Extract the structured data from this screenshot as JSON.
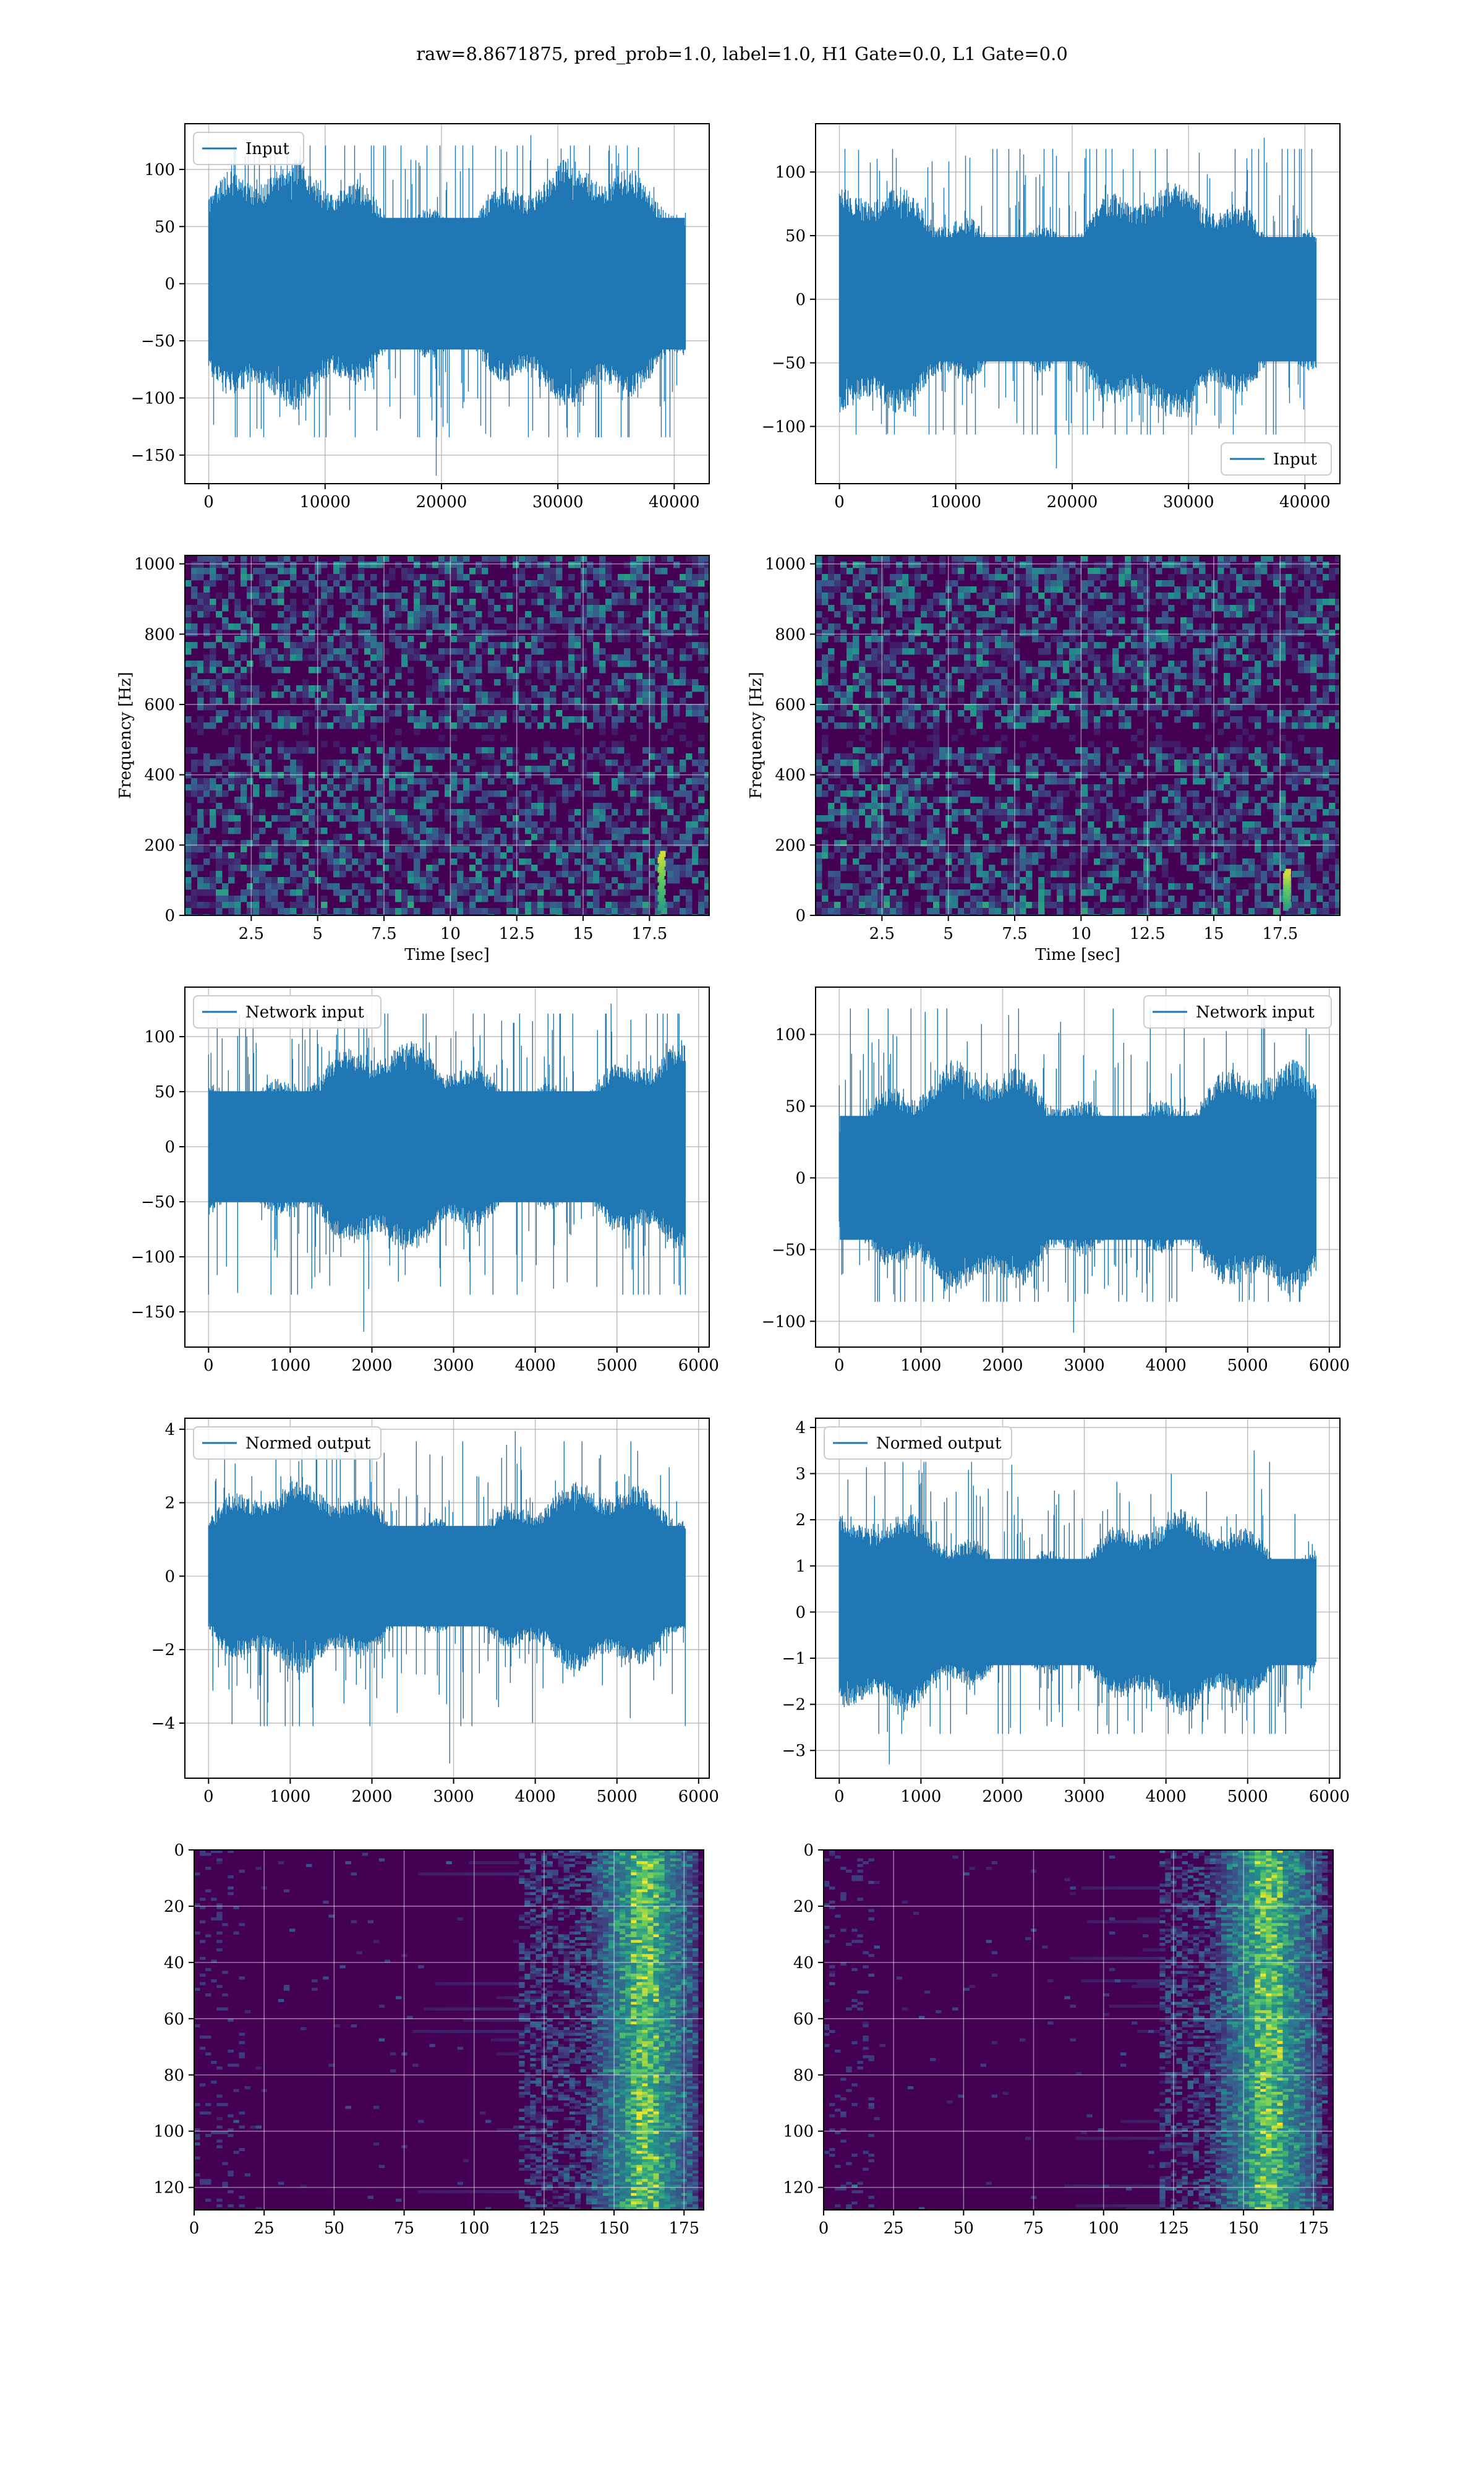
{
  "figure": {
    "suptitle": "raw=8.8671875, pred_prob=1.0, label=1.0, H1 Gate=0.0, L1 Gate=0.0",
    "colors": {
      "line": "#1f77b4",
      "grid": "#b0b0b0",
      "viridis_dark": "#440154",
      "viridis_yellow": "#fde725"
    }
  },
  "chart_data": [
    {
      "id": "input-h1",
      "type": "line",
      "legend": "Input",
      "legend_loc": "upper left",
      "xlim": [
        -2048,
        43008
      ],
      "ylim": [
        -175,
        140
      ],
      "xticks": [
        0,
        10000,
        20000,
        30000,
        40000
      ],
      "yticks": [
        -150,
        -100,
        -50,
        0,
        50,
        100
      ],
      "n_points": 40960,
      "envelope_p99": 80,
      "peak_max": 130,
      "peak_min": -168,
      "grid": true
    },
    {
      "id": "input-l1",
      "type": "line",
      "legend": "Input",
      "legend_loc": "lower right",
      "xlim": [
        -2048,
        43008
      ],
      "ylim": [
        -145,
        138
      ],
      "xticks": [
        0,
        10000,
        20000,
        30000,
        40000
      ],
      "yticks": [
        -100,
        -50,
        0,
        50,
        100
      ],
      "n_points": 40960,
      "envelope_p99": 68,
      "peak_max": 127,
      "peak_min": -133,
      "grid": true
    },
    {
      "id": "spectrogram-h1",
      "type": "heatmap",
      "xlabel": "Time [sec]",
      "ylabel": "Frequency [Hz]",
      "xlim": [
        0,
        19.75
      ],
      "ylim": [
        0,
        1024
      ],
      "xticks": [
        2.5,
        5.0,
        7.5,
        10.0,
        12.5,
        15.0,
        17.5
      ],
      "yticks": [
        0,
        200,
        400,
        600,
        800,
        1000
      ],
      "colormap": "viridis",
      "feature": "chirp near t=17.9 s, 20–180 Hz",
      "grid": true
    },
    {
      "id": "spectrogram-l1",
      "type": "heatmap",
      "xlabel": "Time [sec]",
      "ylabel": "Frequency [Hz]",
      "xlim": [
        0,
        19.75
      ],
      "ylim": [
        0,
        1024
      ],
      "xticks": [
        2.5,
        5.0,
        7.5,
        10.0,
        12.5,
        15.0,
        17.5
      ],
      "yticks": [
        0,
        200,
        400,
        600,
        800,
        1000
      ],
      "colormap": "viridis",
      "feature": "chirp near t=17.7 s, 20–120 Hz",
      "grid": true
    },
    {
      "id": "network-input-h1",
      "type": "line",
      "legend": "Network input",
      "legend_loc": "upper left",
      "xlim": [
        -290,
        6130
      ],
      "ylim": [
        -182,
        145
      ],
      "xticks": [
        0,
        1000,
        2000,
        3000,
        4000,
        5000,
        6000
      ],
      "yticks": [
        -150,
        -100,
        -50,
        0,
        50,
        100
      ],
      "n_points": 5840,
      "envelope_p99": 70,
      "peak_max": 130,
      "peak_min": -168,
      "grid": true
    },
    {
      "id": "network-input-l1",
      "type": "line",
      "legend": "Network input",
      "legend_loc": "upper right",
      "xlim": [
        -290,
        6130
      ],
      "ylim": [
        -118,
        133
      ],
      "xticks": [
        0,
        1000,
        2000,
        3000,
        4000,
        5000,
        6000
      ],
      "yticks": [
        -100,
        -50,
        0,
        50,
        100
      ],
      "n_points": 5840,
      "envelope_p99": 60,
      "peak_max": 127,
      "peak_min": -108,
      "grid": true
    },
    {
      "id": "normed-output-h1",
      "type": "line",
      "legend": "Normed output",
      "legend_loc": "upper left",
      "xlim": [
        -290,
        6130
      ],
      "ylim": [
        -5.5,
        4.3
      ],
      "xticks": [
        0,
        1000,
        2000,
        3000,
        4000,
        5000,
        6000
      ],
      "yticks": [
        -4,
        -2,
        0,
        2,
        4
      ],
      "n_points": 5840,
      "envelope_p99": 1.9,
      "peak_max": 3.95,
      "peak_min": -5.1,
      "grid": true
    },
    {
      "id": "normed-output-l1",
      "type": "line",
      "legend": "Normed output",
      "legend_loc": "upper left",
      "xlim": [
        -290,
        6130
      ],
      "ylim": [
        -3.6,
        4.2
      ],
      "xticks": [
        0,
        1000,
        2000,
        3000,
        4000,
        5000,
        6000
      ],
      "yticks": [
        -3,
        -2,
        -1,
        0,
        1,
        2,
        3,
        4
      ],
      "n_points": 5840,
      "envelope_p99": 1.6,
      "peak_max": 3.5,
      "peak_min": -3.3,
      "grid": true
    },
    {
      "id": "feature-map-h1",
      "type": "heatmap",
      "xlim": [
        0,
        182
      ],
      "ylim": [
        128,
        0
      ],
      "xticks": [
        0,
        25,
        50,
        75,
        100,
        125,
        150,
        175
      ],
      "yticks": [
        0,
        20,
        40,
        60,
        80,
        100,
        120
      ],
      "rows": 128,
      "cols": 182,
      "colormap": "viridis",
      "active_cols": [
        115,
        178
      ],
      "peak_col": 160,
      "grid": true
    },
    {
      "id": "feature-map-l1",
      "type": "heatmap",
      "xlim": [
        0,
        182
      ],
      "ylim": [
        128,
        0
      ],
      "xticks": [
        0,
        25,
        50,
        75,
        100,
        125,
        150,
        175
      ],
      "yticks": [
        0,
        20,
        40,
        60,
        80,
        100,
        120
      ],
      "rows": 128,
      "cols": 182,
      "colormap": "viridis",
      "active_cols": [
        120,
        178
      ],
      "peak_col": 158,
      "grid": true
    }
  ]
}
